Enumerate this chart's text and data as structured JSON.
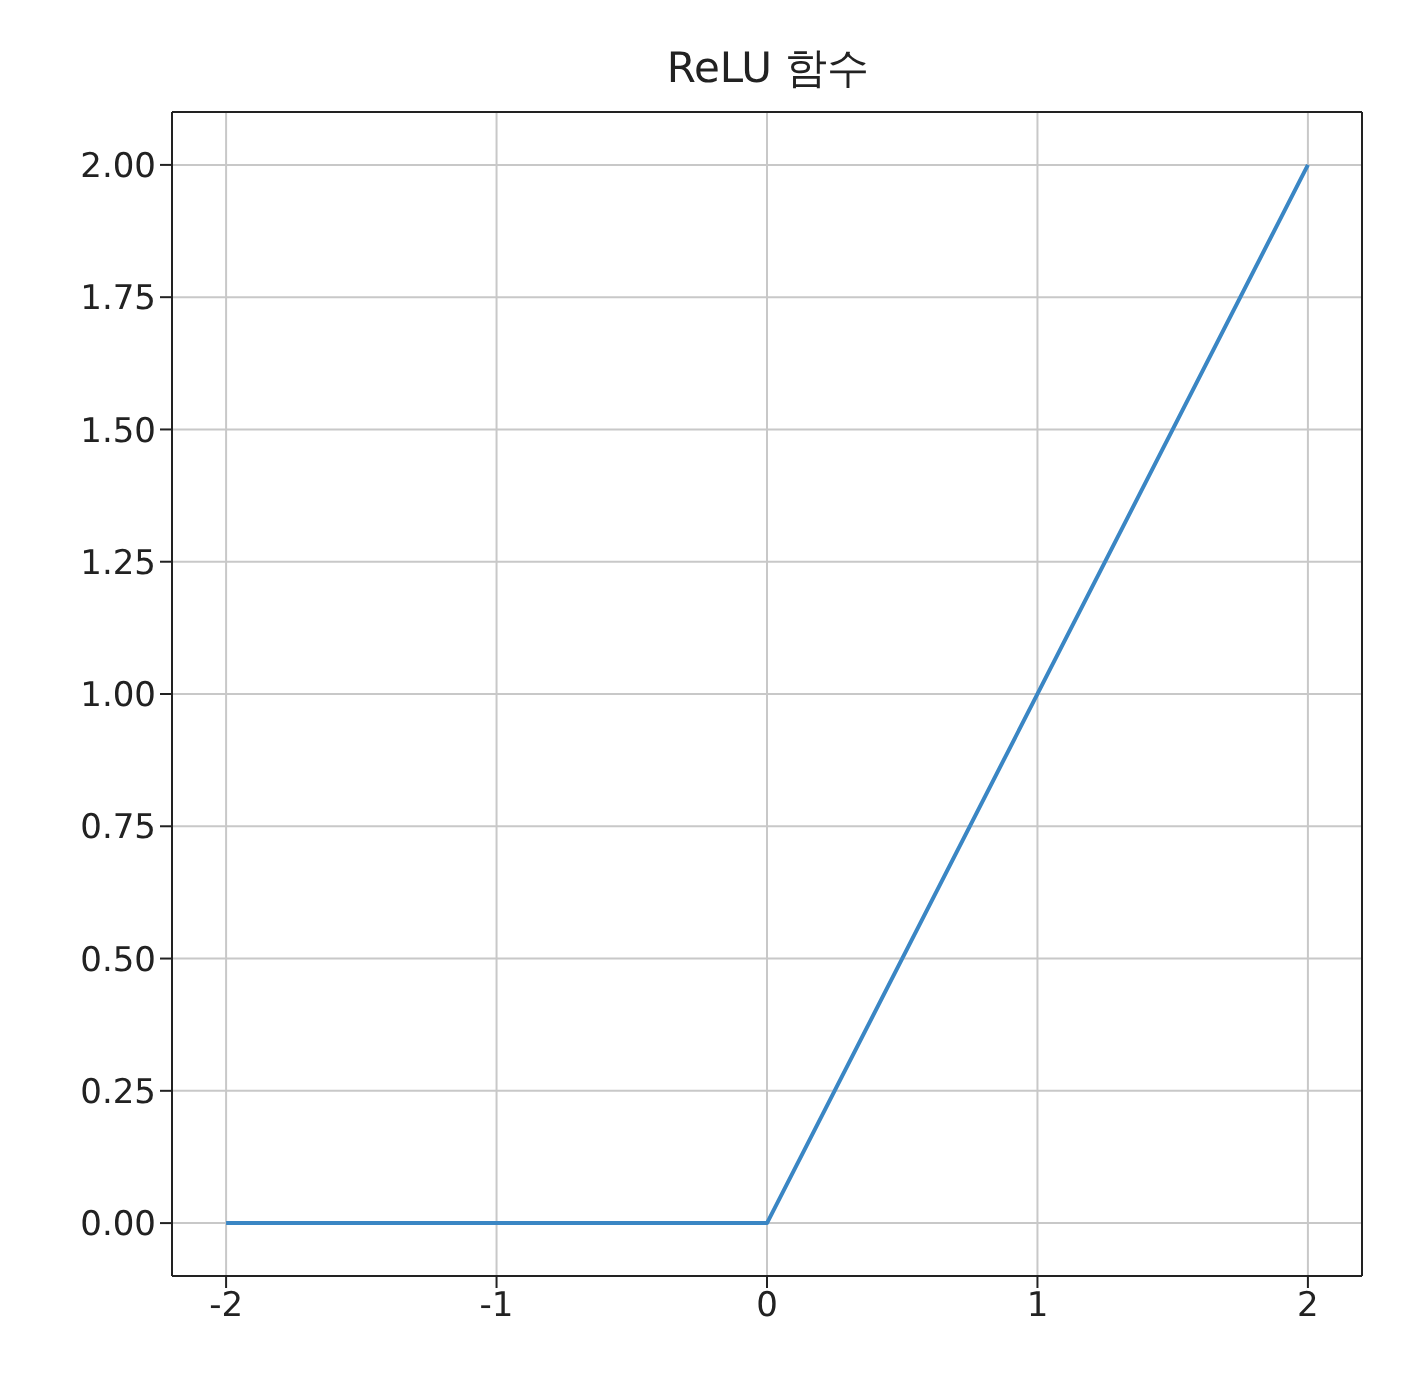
{
  "chart_data": {
    "type": "line",
    "title": "ReLU 함수",
    "x": [
      -2,
      0,
      2
    ],
    "series": [
      {
        "color": "#3a86c4",
        "values": [
          0,
          0,
          2
        ]
      }
    ],
    "xlim": [
      -2.2,
      2.2
    ],
    "xticks": [
      {
        "value": -2,
        "label": "-2"
      },
      {
        "value": -1,
        "label": "-1"
      },
      0,
      1,
      2
    ],
    "ylim": [
      -0.1,
      2.1
    ],
    "yticks": [
      {
        "value": 0,
        "label": "0.00"
      },
      {
        "value": 0.25,
        "label": "0.25"
      },
      {
        "value": 0.5,
        "label": "0.50"
      },
      {
        "value": 0.75,
        "label": "0.75"
      },
      {
        "value": 1,
        "label": "1.00"
      },
      {
        "value": 1.25,
        "label": "1.25"
      },
      {
        "value": 1.5,
        "label": "1.50"
      },
      {
        "value": 1.75,
        "label": "1.75"
      },
      {
        "value": 2,
        "label": "2.00"
      }
    ],
    "grid": true,
    "marker": "none",
    "line_style": "solid",
    "legend": false
  }
}
